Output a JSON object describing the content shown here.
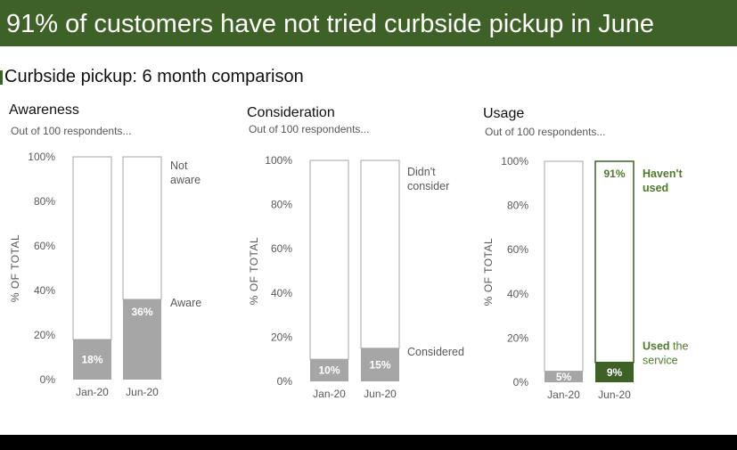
{
  "header": {
    "title": "91% of customers have not tried curbside pickup in June"
  },
  "subtitle": "Curbside pickup: 6 month comparison",
  "colors": {
    "banner": "#3d6126",
    "bar_gray": "#a6a6a6",
    "bar_green": "#3d6126",
    "highlight_green": "#4f7a2d",
    "axis_text": "#595959"
  },
  "chart_data": [
    {
      "type": "bar",
      "stacked": true,
      "title": "Awareness",
      "subtitle": "Out of 100 respondents...",
      "ylabel": "% OF TOTAL",
      "ylim": [
        0,
        100
      ],
      "yticks": [
        "0%",
        "20%",
        "40%",
        "60%",
        "80%",
        "100%"
      ],
      "categories": [
        "Jan-20",
        "Jun-20"
      ],
      "series": [
        {
          "name": "Aware",
          "values": [
            18,
            36
          ],
          "labels": [
            "18%",
            "36%"
          ]
        },
        {
          "name": "Not aware",
          "values": [
            82,
            64
          ]
        }
      ],
      "legend_top_label": "Not aware",
      "legend_bottom_label": "Aware",
      "highlight": false
    },
    {
      "type": "bar",
      "stacked": true,
      "title": "Consideration",
      "subtitle": "Out of 100 respondents...",
      "ylabel": "% OF TOTAL",
      "ylim": [
        0,
        100
      ],
      "yticks": [
        "0%",
        "20%",
        "40%",
        "60%",
        "80%",
        "100%"
      ],
      "categories": [
        "Jan-20",
        "Jun-20"
      ],
      "series": [
        {
          "name": "Considered",
          "values": [
            10,
            15
          ],
          "labels": [
            "10%",
            "15%"
          ]
        },
        {
          "name": "Didn't consider",
          "values": [
            90,
            85
          ]
        }
      ],
      "legend_top_label": "Didn't consider",
      "legend_bottom_label": "Considered",
      "highlight": false
    },
    {
      "type": "bar",
      "stacked": true,
      "title": "Usage",
      "subtitle": "Out of 100 respondents...",
      "ylabel": "% OF TOTAL",
      "ylim": [
        0,
        100
      ],
      "yticks": [
        "0%",
        "20%",
        "40%",
        "60%",
        "80%",
        "100%"
      ],
      "categories": [
        "Jan-20",
        "Jun-20"
      ],
      "series": [
        {
          "name": "Used the service",
          "values": [
            5,
            9
          ],
          "labels": [
            "5%",
            "9%"
          ]
        },
        {
          "name": "Haven't used",
          "values": [
            95,
            91
          ],
          "top_label_jun": "91%"
        }
      ],
      "legend_top_label": "Haven't used",
      "legend_bottom_label_bold": "Used",
      "legend_bottom_label_rest": "the service",
      "highlight": true
    }
  ]
}
